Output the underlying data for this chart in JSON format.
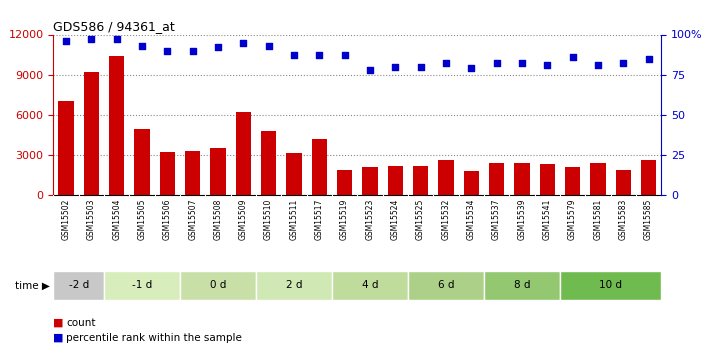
{
  "title": "GDS586 / 94361_at",
  "samples": [
    "GSM15502",
    "GSM15503",
    "GSM15504",
    "GSM15505",
    "GSM15506",
    "GSM15507",
    "GSM15508",
    "GSM15509",
    "GSM15510",
    "GSM15511",
    "GSM15517",
    "GSM15519",
    "GSM15523",
    "GSM15524",
    "GSM15525",
    "GSM15532",
    "GSM15534",
    "GSM15537",
    "GSM15539",
    "GSM15541",
    "GSM15579",
    "GSM15581",
    "GSM15583",
    "GSM15585"
  ],
  "counts": [
    7000,
    9200,
    10400,
    4900,
    3200,
    3300,
    3500,
    6200,
    4800,
    3100,
    4200,
    1900,
    2100,
    2200,
    2200,
    2600,
    1800,
    2400,
    2400,
    2300,
    2100,
    2400,
    1900,
    2600
  ],
  "percentiles": [
    96,
    97,
    97,
    93,
    90,
    90,
    92,
    95,
    93,
    87,
    87,
    87,
    78,
    80,
    80,
    82,
    79,
    82,
    82,
    81,
    86,
    81,
    82,
    85
  ],
  "time_groups": [
    {
      "label": "-2 d",
      "start": 0,
      "end": 2,
      "color": "#c8c8c8"
    },
    {
      "label": "-1 d",
      "start": 2,
      "end": 5,
      "color": "#d8edbc"
    },
    {
      "label": "0 d",
      "start": 5,
      "end": 8,
      "color": "#c8e0a8"
    },
    {
      "label": "2 d",
      "start": 8,
      "end": 11,
      "color": "#d0e8b4"
    },
    {
      "label": "4 d",
      "start": 11,
      "end": 14,
      "color": "#c0dc9c"
    },
    {
      "label": "6 d",
      "start": 14,
      "end": 17,
      "color": "#acd088"
    },
    {
      "label": "8 d",
      "start": 17,
      "end": 20,
      "color": "#94c870"
    },
    {
      "label": "10 d",
      "start": 20,
      "end": 24,
      "color": "#70bb50"
    }
  ],
  "bar_color": "#cc0000",
  "dot_color": "#0000cc",
  "ylim_left": [
    0,
    12000
  ],
  "ylim_right": [
    0,
    100
  ],
  "yticks_left": [
    0,
    3000,
    6000,
    9000,
    12000
  ],
  "yticks_right": [
    0,
    25,
    50,
    75,
    100
  ],
  "ytick_labels_right": [
    "0",
    "25",
    "50",
    "75",
    "100%"
  ],
  "legend_count_label": "count",
  "legend_pct_label": "percentile rank within the sample",
  "time_label": "time",
  "bg_color": "#ffffff",
  "sample_bg": "#d8d8d8",
  "grid_color": "#888888"
}
